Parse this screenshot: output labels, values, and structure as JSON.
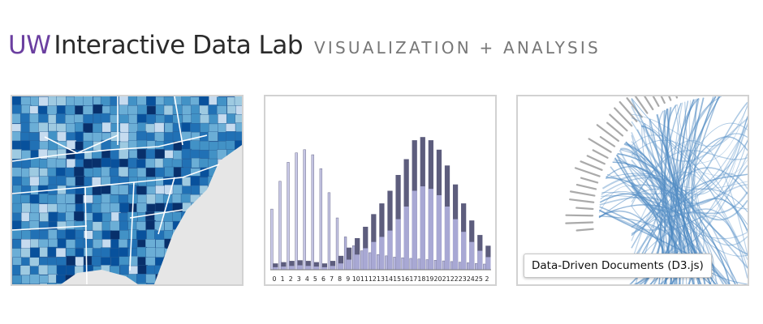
{
  "header": {
    "brand": "UW",
    "lab_name": "Interactive Data Lab",
    "tagline": "VISUALIZATION + ANALYSIS"
  },
  "panels": {
    "map": {
      "icon": "choropleth-map-thumbnail"
    },
    "chart": {
      "icon": "stacked-bar-chart-thumbnail"
    },
    "bundle": {
      "icon": "hierarchical-edge-bundling-thumbnail"
    }
  },
  "tooltip": {
    "text": "Data-Driven Documents (D3.js)"
  },
  "colors": {
    "brand": "#6b3fa0",
    "map_light": "#c6dbef",
    "map_dark": "#08306b",
    "bar_dark": "#4a4a6a",
    "bar_light": "#9f9fcf",
    "edge_blue": "#4682b4"
  },
  "chart_data": {
    "type": "bar",
    "categories": [
      "0",
      "1",
      "2",
      "3",
      "4",
      "5",
      "6",
      "7",
      "8",
      "9",
      "10",
      "11",
      "12",
      "13",
      "14",
      "15",
      "16",
      "17",
      "18",
      "19",
      "20",
      "21",
      "22",
      "23",
      "24",
      "25",
      "2"
    ],
    "series": [
      {
        "values": [
          96,
          140,
          170,
          185,
          190,
          182,
          160,
          122,
          82,
          52,
          38,
          30,
          27,
          24,
          22,
          20,
          19,
          18,
          17,
          16,
          15,
          14,
          13,
          12,
          11,
          10,
          9
        ]
      },
      {
        "values": [
          10,
          12,
          14,
          15,
          14,
          12,
          10,
          14,
          22,
          35,
          50,
          68,
          88,
          105,
          125,
          150,
          175,
          205,
          210,
          205,
          190,
          165,
          135,
          105,
          78,
          55,
          38
        ]
      },
      {
        "values": [
          4,
          5,
          6,
          7,
          6,
          5,
          4,
          6,
          10,
          16,
          24,
          34,
          44,
          52,
          62,
          80,
          100,
          125,
          132,
          128,
          118,
          100,
          80,
          60,
          44,
          30,
          20
        ]
      }
    ]
  }
}
